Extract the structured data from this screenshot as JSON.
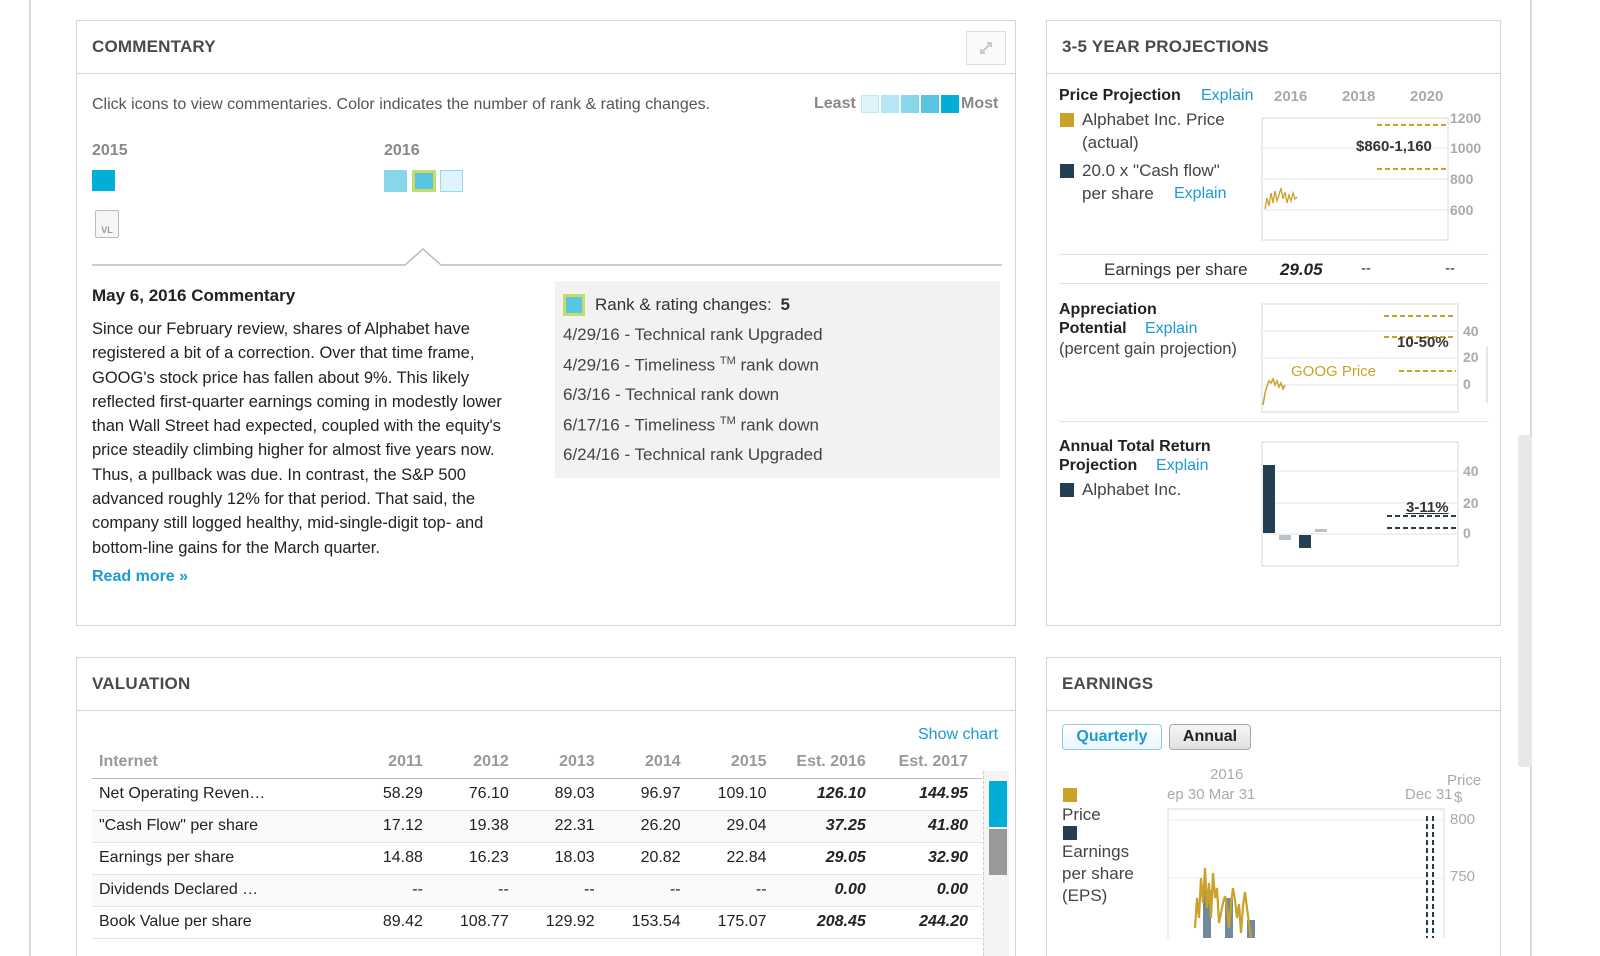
{
  "commentary": {
    "title": "COMMENTARY",
    "instructions": "Click icons to view commentaries. Color indicates the number of rank & rating changes.",
    "legend_least": "Least",
    "legend_most": "Most",
    "year_2015": "2015",
    "year_2016": "2016",
    "vl_icon_label": "VL",
    "heading": "May 6, 2016 Commentary",
    "body": "Since our February review, shares of Alphabet have registered a bit of a correction. Over that time frame, GOOG's stock price has fallen about 9%. This likely reflected first-quarter earnings coming in modestly lower than Wall Street had expected, coupled with the equity's price steadily climbing higher for almost five years now. Thus, a pullback was due. In contrast, the S&P 500 advanced roughly 12% for that period. That said, the company still logged healthy, mid-single-digit top- and bottom-line gains for the March quarter.",
    "read_more": "Read more »",
    "changes_label": "Rank & rating changes:",
    "changes_count": "5",
    "changes": [
      {
        "date": "4/29/16 - Technical rank Upgraded",
        "tm": "",
        "suffix": ""
      },
      {
        "date": "4/29/16 - Timeliness",
        "tm": "TM",
        "suffix": " rank down"
      },
      {
        "date": "6/3/16 - Technical rank down",
        "tm": "",
        "suffix": ""
      },
      {
        "date": "6/17/16 - Timeliness",
        "tm": "TM",
        "suffix": " rank down"
      },
      {
        "date": "6/24/16 - Technical rank Upgraded",
        "tm": "",
        "suffix": ""
      }
    ],
    "colors": {
      "least": "#dff4fa",
      "l2": "#b5e6f3",
      "l3": "#88d6ea",
      "l4": "#5ac5e1",
      "most": "#00aed8",
      "selected_border": "#b4d34a"
    }
  },
  "projections": {
    "title": "3-5 YEAR PROJECTIONS",
    "price_projection": "Price Projection",
    "explain": "Explain",
    "years": [
      "2016",
      "2018",
      "2020"
    ],
    "legend_price": "Alphabet Inc. Price (actual)",
    "legend_price_l1": "Alphabet Inc. Price",
    "legend_price_l2": "(actual)",
    "legend_cf_l1": "20.0 x \"Cash flow\"",
    "legend_cf_l2": "per share",
    "price_range": "$860-1,160",
    "price_axis": [
      "1200",
      "1000",
      "800",
      "600"
    ],
    "eps_label": "Earnings per share",
    "eps_value": "29.05",
    "eps_dash1": "--",
    "eps_dash2": "--",
    "appreciation_l1": "Appreciation",
    "appreciation_l2": "Potential",
    "appreciation_l3": "(percent gain projection)",
    "appreciation_range": "10-50%",
    "goog_price": "GOOG Price",
    "appreciation_axis": [
      "40",
      "20",
      "0"
    ],
    "atr_l1": "Annual Total Return",
    "atr_l2": "Projection",
    "atr_legend": "Alphabet Inc.",
    "atr_range": "3-11%",
    "atr_axis": [
      "40",
      "20",
      "0"
    ],
    "colors": {
      "price": "#c9a227",
      "cashflow": "#243f52",
      "grid": "#d8d8d8"
    }
  },
  "valuation": {
    "title": "VALUATION",
    "show_chart": "Show chart",
    "columns": [
      "Internet",
      "2011",
      "2012",
      "2013",
      "2014",
      "2015",
      "Est. 2016",
      "Est. 2017"
    ],
    "rows": [
      {
        "label": "Net Operating Reven…",
        "values": [
          "58.29",
          "76.10",
          "89.03",
          "96.97",
          "109.10",
          "126.10",
          "144.95"
        ]
      },
      {
        "label": "\"Cash Flow\" per share",
        "values": [
          "17.12",
          "19.38",
          "22.31",
          "26.20",
          "29.04",
          "37.25",
          "41.80"
        ]
      },
      {
        "label": "Earnings per share",
        "values": [
          "14.88",
          "16.23",
          "18.03",
          "20.82",
          "22.84",
          "29.05",
          "32.90"
        ]
      },
      {
        "label": "Dividends Declared …",
        "values": [
          "--",
          "--",
          "--",
          "--",
          "--",
          "0.00",
          "0.00"
        ]
      },
      {
        "label": "Book Value per share",
        "values": [
          "89.42",
          "108.77",
          "129.92",
          "153.54",
          "175.07",
          "208.45",
          "244.20"
        ]
      }
    ]
  },
  "earnings": {
    "title": "EARNINGS",
    "tab_quarterly": "Quarterly",
    "tab_annual": "Annual",
    "year": "2016",
    "date_left": "ep 30 Mar 31",
    "date_right": "Dec 31",
    "price_axis_label": "Price",
    "price_axis_unit": "$",
    "axis": [
      "800",
      "750"
    ],
    "legend_price": "Price",
    "legend_eps_l1": "Earnings",
    "legend_eps_l2": "per share",
    "legend_eps_l3": "(EPS)"
  }
}
